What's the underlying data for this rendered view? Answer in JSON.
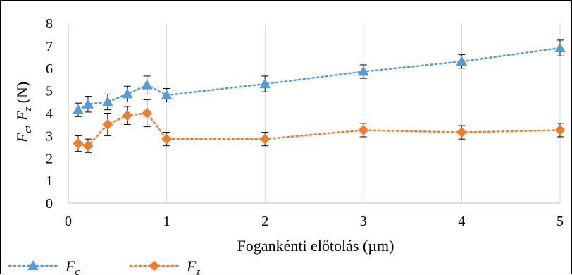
{
  "chart_data": {
    "type": "line",
    "xlabel": "Fogankénti előtolás (µm)",
    "ylabel": {
      "parts": [
        {
          "text": "F",
          "italic": true
        },
        {
          "text": "c",
          "italic": true,
          "sub": true
        },
        {
          "text": ", ",
          "italic": false
        },
        {
          "text": "F",
          "italic": true
        },
        {
          "text": "z",
          "italic": true,
          "sub": true
        },
        {
          "text": " (N)",
          "italic": false
        }
      ]
    },
    "xlim": [
      0,
      5
    ],
    "ylim": [
      0,
      8
    ],
    "xticks": [
      "0",
      "1",
      "2",
      "3",
      "4",
      "5"
    ],
    "yticks": [
      "0",
      "1",
      "2",
      "3",
      "4",
      "5",
      "6",
      "7",
      "8"
    ],
    "xtick_values": [
      0,
      1,
      2,
      3,
      4,
      5
    ],
    "ytick_values": [
      0,
      1,
      2,
      3,
      4,
      5,
      6,
      7,
      8
    ],
    "grid": {
      "vertical": true,
      "horizontal": false
    },
    "legend_position": "bottom-left",
    "series": [
      {
        "name_main": "F",
        "name_sub": "c",
        "color": "#5B9BD5",
        "marker": "triangle",
        "line_style": "dotted",
        "x": [
          0.1,
          0.2,
          0.4,
          0.6,
          0.8,
          1,
          2,
          3,
          4,
          5
        ],
        "y": [
          4.15,
          4.4,
          4.5,
          4.85,
          5.25,
          4.8,
          5.3,
          5.85,
          6.3,
          6.9
        ],
        "err": [
          0.3,
          0.35,
          0.35,
          0.35,
          0.4,
          0.3,
          0.35,
          0.3,
          0.3,
          0.35
        ]
      },
      {
        "name_main": "F",
        "name_sub": "z",
        "color": "#ED7D31",
        "marker": "diamond",
        "line_style": "dotted",
        "x": [
          0.1,
          0.2,
          0.4,
          0.6,
          0.8,
          1,
          2,
          3,
          4,
          5
        ],
        "y": [
          2.65,
          2.55,
          3.5,
          3.9,
          4.0,
          2.85,
          2.85,
          3.25,
          3.15,
          3.25
        ],
        "err": [
          0.35,
          0.3,
          0.5,
          0.4,
          0.6,
          0.3,
          0.3,
          0.3,
          0.3,
          0.3
        ]
      }
    ]
  }
}
